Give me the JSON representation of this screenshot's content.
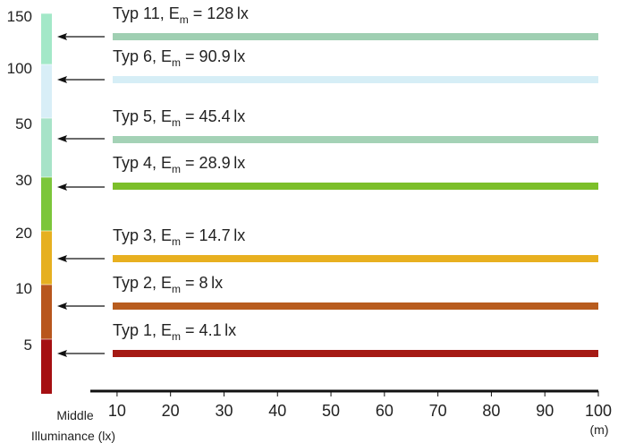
{
  "chart_data": {
    "type": "bar",
    "scale_label": [
      "Middle",
      "Illuminance (lx)"
    ],
    "x_unit": "(m)",
    "x_ticks": [
      10,
      20,
      30,
      40,
      50,
      60,
      70,
      80,
      90,
      100
    ],
    "x_range": [
      5,
      100
    ],
    "scale": [
      {
        "label": "5",
        "color": "#a50f12"
      },
      {
        "label": "10",
        "color": "#b8561d"
      },
      {
        "label": "20",
        "color": "#e6b020"
      },
      {
        "label": "30",
        "color": "#7cc63a"
      },
      {
        "label": "50",
        "color": "#a7e3c8"
      },
      {
        "label": "100",
        "color": "#d8eef7"
      },
      {
        "label": "150",
        "color": "#a3e8c8"
      }
    ],
    "series": [
      {
        "name_prefix": "Typ 11, E",
        "sub": "m",
        "eq": " = ",
        "value": 128,
        "unit": "lx",
        "value_text": "128",
        "color": "#9fcfb2",
        "level": 150
      },
      {
        "name_prefix": "Typ 6, E",
        "sub": "m",
        "eq": " = ",
        "value": 90.9,
        "unit": "lx",
        "value_text": "90.9",
        "color": "#d6eef6",
        "level": 100
      },
      {
        "name_prefix": "Typ 5, E",
        "sub": "m",
        "eq": " = ",
        "value": 45.4,
        "unit": "lx",
        "value_text": "45.4",
        "color": "#a4d2b6",
        "level": 50
      },
      {
        "name_prefix": "Typ 4, E",
        "sub": "m",
        "eq": " = ",
        "value": 28.9,
        "unit": "lx",
        "value_text": "28.9",
        "color": "#7cbf2a",
        "level": 30
      },
      {
        "name_prefix": "Typ 3, E",
        "sub": "m",
        "eq": " = ",
        "value": 14.7,
        "unit": "lx",
        "value_text": "14.7",
        "color": "#e8b020",
        "level": 20
      },
      {
        "name_prefix": "Typ 2, E",
        "sub": "m",
        "eq": " = ",
        "value": 8,
        "unit": "lx",
        "value_text": "8",
        "color": "#b85c1e",
        "level": 10
      },
      {
        "name_prefix": "Typ 1, E",
        "sub": "m",
        "eq": " = ",
        "value": 4.1,
        "unit": "lx",
        "value_text": "4.1",
        "color": "#a51a14",
        "level": 5
      }
    ]
  }
}
